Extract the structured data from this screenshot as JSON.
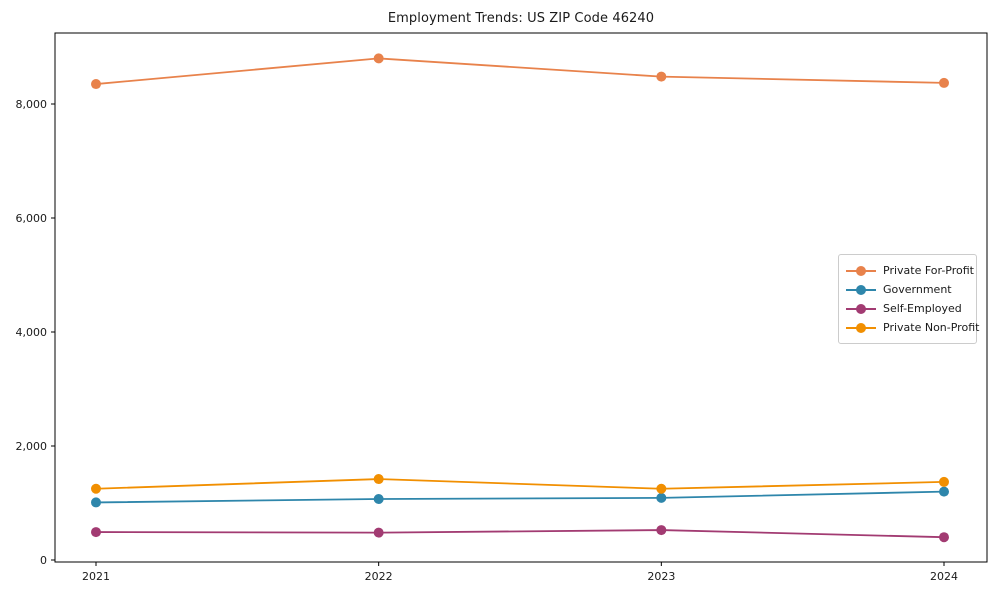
{
  "chart_data": {
    "type": "line",
    "title": "Employment Trends: US ZIP Code 46240",
    "categories": [
      "2021",
      "2022",
      "2023",
      "2024"
    ],
    "series": [
      {
        "name": "Private For-Profit",
        "color": "#E8824B",
        "values": [
          8350,
          8800,
          8480,
          8370
        ]
      },
      {
        "name": "Government",
        "color": "#2E86AB",
        "values": [
          1010,
          1070,
          1090,
          1200
        ]
      },
      {
        "name": "Self-Employed",
        "color": "#A23B72",
        "values": [
          490,
          480,
          525,
          400
        ]
      },
      {
        "name": "Private Non-Profit",
        "color": "#F18F01",
        "values": [
          1250,
          1420,
          1250,
          1370
        ]
      }
    ],
    "xlabel": "",
    "ylabel": "",
    "ylim": [
      0,
      9250
    ],
    "yticks": [
      0,
      2000,
      4000,
      6000,
      8000
    ],
    "ytick_labels": [
      "0",
      "2,000",
      "4,000",
      "6,000",
      "8,000"
    ],
    "legend_position": "center-right",
    "grid": false,
    "marker": "circle",
    "line_width": 1.8,
    "marker_radius": 5,
    "axis_color": "#000000",
    "text_color": "#1a1a1a"
  }
}
